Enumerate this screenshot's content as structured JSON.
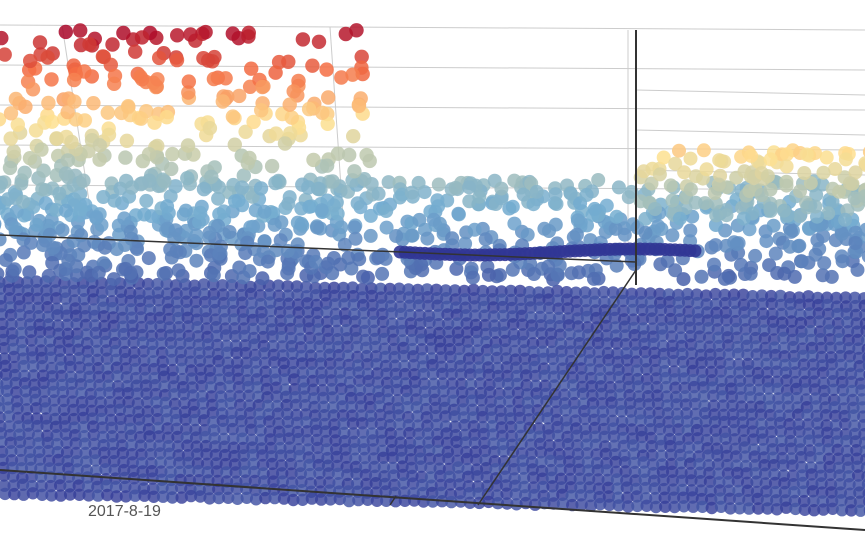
{
  "chart_data": {
    "type": "scatter",
    "chart_subtype": "3d-scatter",
    "title": "",
    "xlabel": "",
    "ylabel": "",
    "zlabel": "",
    "x_tick_labels": [
      "2017-8-19"
    ],
    "grid": true,
    "legend": "none",
    "color_scale": {
      "low": "#313695",
      "mid_low": "#74add1",
      "mid": "#fee090",
      "mid_high": "#f46d43",
      "high": "#a50026"
    },
    "colors": {
      "axis": "#333333",
      "grid": "#cccccc",
      "label": "#555555",
      "background": "#ffffff"
    },
    "value_range": [
      0,
      1
    ],
    "layers": [
      {
        "level": 0.0,
        "label_points": 0
      },
      {
        "level": 0.3,
        "label_points": 0
      },
      {
        "level": 0.6,
        "label_points": 0
      },
      {
        "level": 0.85,
        "label_points": 0
      }
    ]
  }
}
